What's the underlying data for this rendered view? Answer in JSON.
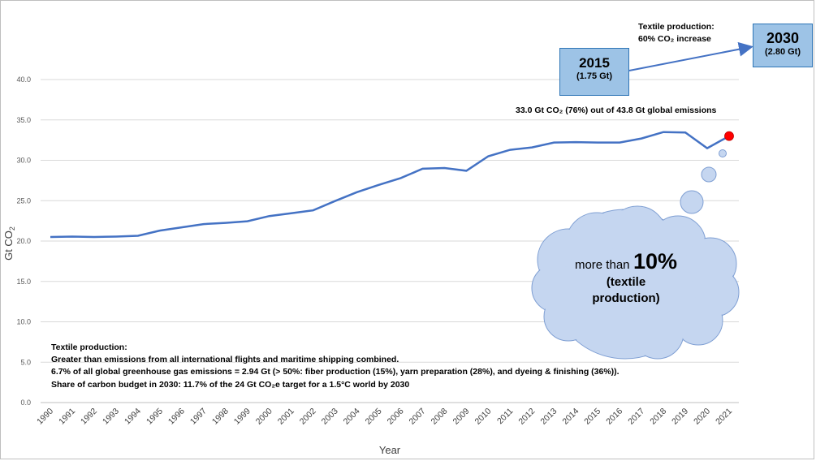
{
  "chart_data": {
    "type": "line",
    "xlabel": "Year",
    "ylabel": "Gt CO2",
    "ylim": [
      0,
      40
    ],
    "yticks": [
      "0.0",
      "5.0",
      "10.0",
      "15.0",
      "20.0",
      "25.0",
      "30.0",
      "35.0",
      "40.0"
    ],
    "categories": [
      "1990",
      "1991",
      "1992",
      "1993",
      "1994",
      "1995",
      "1996",
      "1997",
      "1998",
      "1999",
      "2000",
      "2001",
      "2002",
      "2003",
      "2004",
      "2005",
      "2006",
      "2007",
      "2008",
      "2009",
      "2010",
      "2011",
      "2012",
      "2013",
      "2014",
      "2015",
      "2016",
      "2017",
      "2018",
      "2019",
      "2020",
      "2021"
    ],
    "series": [
      {
        "values": [
          20.5,
          20.55,
          20.5,
          20.55,
          20.65,
          21.3,
          21.7,
          22.1,
          22.25,
          22.45,
          23.1,
          23.45,
          23.8,
          24.95,
          26.05,
          26.95,
          27.8,
          28.95,
          29.05,
          28.7,
          30.5,
          31.3,
          31.6,
          32.2,
          32.25,
          32.2,
          32.2,
          32.7,
          33.5,
          33.45,
          31.5,
          33.0
        ],
        "color": "#4472c4"
      }
    ],
    "highlight": {
      "year": "2021",
      "value": 33.0,
      "color": "#ff0000"
    },
    "grid": true
  },
  "annotations": {
    "global_emissions": "33.0 Gt CO₂ (76%) out of 43.8 Gt global emissions",
    "tp_title": "Textile production:",
    "tp_increase": "60% CO₂ increase",
    "box2015_year": "2015",
    "box2015_value": "(1.75 Gt)",
    "box2030_year": "2030",
    "box2030_value": "(2.80 Gt)",
    "cloud_prefix": "more than",
    "cloud_pct": "10%",
    "cloud_line2": "(textile",
    "cloud_line3": "production)",
    "notes": [
      "Textile production:",
      "Greater than emissions from all international flights and maritime shipping combined.",
      "6.7% of all global greenhouse gas emissions = 2.94 Gt (> 50%: fiber production (15%), yarn preparation (28%), and dyeing & finishing (36%)).",
      "Share of carbon budget in 2030: 11.7% of the 24 Gt CO₂e target for a 1.5°C world by 2030"
    ]
  },
  "colors": {
    "line": "#4472c4",
    "highlight": "#ff0000",
    "box_fill": "#9dc3e6",
    "cloud_fill": "#c5d6f0",
    "grid": "#d9d9d9"
  }
}
